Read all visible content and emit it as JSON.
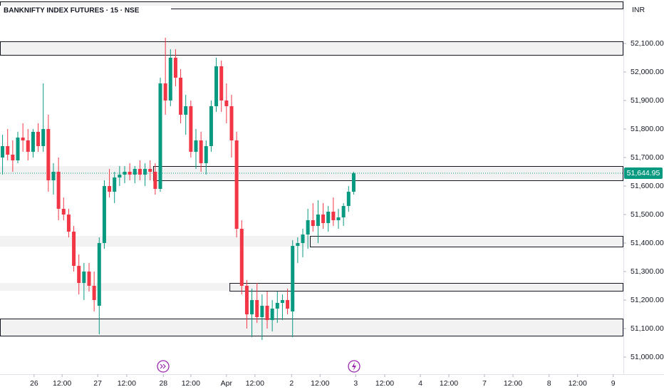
{
  "chart_data": {
    "type": "candlestick",
    "title": "BANKNIFTY INDEX FUTURES · 15 · NSE",
    "currency": "INR",
    "x": [
      0,
      1,
      2,
      3,
      4,
      5,
      6,
      7,
      8,
      9,
      10,
      11,
      12,
      13,
      14,
      15,
      16,
      17,
      18,
      19,
      20,
      21,
      22,
      23,
      24,
      25,
      26,
      27,
      28,
      29,
      30,
      31,
      32,
      33,
      34,
      35,
      36,
      37,
      38,
      39,
      40,
      41,
      42,
      43,
      44,
      45,
      46,
      47,
      48,
      49,
      50,
      51,
      52,
      53,
      54,
      55,
      56,
      57,
      58,
      59,
      60,
      61,
      62,
      63,
      64,
      65,
      66,
      67,
      68,
      69
    ],
    "open": [
      51700,
      51740,
      51710,
      51690,
      51770,
      51760,
      51720,
      51790,
      51740,
      51800,
      51620,
      51650,
      51520,
      51500,
      51440,
      51320,
      51260,
      51300,
      51250,
      51180,
      51400,
      51600,
      51580,
      51630,
      51640,
      51650,
      51640,
      51660,
      51640,
      51660,
      51650,
      51590,
      51960,
      51900,
      52050,
      51980,
      51850,
      51880,
      51720,
      51760,
      51680,
      51740,
      51880,
      52020,
      51900,
      51880,
      51760,
      51450,
      51250,
      51150,
      51200,
      51140,
      51180,
      51130,
      51170,
      51190,
      51200,
      51160,
      51390,
      51400,
      51430,
      51480,
      51460,
      51500,
      51470,
      51510,
      51480,
      51490,
      51530,
      51580
    ],
    "high": [
      51780,
      51800,
      51760,
      51790,
      51820,
      51800,
      51800,
      51820,
      51960,
      51850,
      51680,
      51700,
      51560,
      51520,
      51460,
      51360,
      51330,
      51330,
      51300,
      51420,
      51620,
      51660,
      51650,
      51670,
      51670,
      51680,
      51670,
      51690,
      51680,
      51690,
      51680,
      51980,
      52120,
      52080,
      52080,
      52010,
      51920,
      51900,
      51800,
      51790,
      51760,
      51900,
      52050,
      52040,
      51960,
      51920,
      51790,
      51480,
      51270,
      51240,
      51260,
      51220,
      51230,
      51200,
      51230,
      51220,
      51240,
      51410,
      51420,
      51450,
      51520,
      51540,
      51550,
      51540,
      51530,
      51560,
      51520,
      51540,
      51600,
      51650
    ],
    "low": [
      51640,
      51690,
      51650,
      51680,
      51720,
      51690,
      51700,
      51720,
      51720,
      51580,
      51570,
      51480,
      51480,
      51420,
      51300,
      51220,
      51200,
      51230,
      51160,
      51080,
      51380,
      51560,
      51540,
      51600,
      51610,
      51620,
      51610,
      51620,
      51600,
      51620,
      51570,
      51580,
      51850,
      51880,
      51950,
      51820,
      51780,
      51700,
      51660,
      51650,
      51640,
      51720,
      51860,
      51860,
      51820,
      51700,
      51420,
      51220,
      51100,
      51070,
      51120,
      51060,
      51100,
      51090,
      51120,
      51130,
      51150,
      51070,
      51330,
      51350,
      51380,
      51440,
      51400,
      51450,
      51440,
      51460,
      51450,
      51460,
      51510,
      51570
    ],
    "close": [
      51740,
      51710,
      51690,
      51770,
      51760,
      51720,
      51790,
      51740,
      51800,
      51620,
      51650,
      51520,
      51500,
      51440,
      51320,
      51260,
      51300,
      51250,
      51200,
      51400,
      51600,
      51580,
      51630,
      51640,
      51650,
      51640,
      51660,
      51640,
      51660,
      51650,
      51590,
      51960,
      51900,
      52050,
      51980,
      51850,
      51880,
      51720,
      51760,
      51680,
      51740,
      51880,
      52020,
      51900,
      51880,
      51760,
      51450,
      51250,
      51150,
      51200,
      51140,
      51180,
      51130,
      51170,
      51190,
      51200,
      51170,
      51390,
      51400,
      51430,
      51480,
      51460,
      51500,
      51470,
      51510,
      51480,
      51490,
      51530,
      51580,
      51644.95
    ],
    "up_color": "#089981",
    "down_color": "#f23645",
    "xlim": [
      -0.5,
      122
    ],
    "xticks": [
      {
        "value": 6.2,
        "label": "26"
      },
      {
        "value": 11.7,
        "label": "12:00"
      },
      {
        "value": 18.7,
        "label": "27"
      },
      {
        "value": 24.4,
        "label": "12:00"
      },
      {
        "value": 31.6,
        "label": "28"
      },
      {
        "value": 37.0,
        "label": "12:00"
      },
      {
        "value": 44.0,
        "label": "Apr"
      },
      {
        "value": 49.6,
        "label": "12:00"
      },
      {
        "value": 56.8,
        "label": "2"
      },
      {
        "value": 62.4,
        "label": "12:00"
      },
      {
        "value": 69.4,
        "label": "3"
      },
      {
        "value": 75.1,
        "label": "12:00"
      },
      {
        "value": 82.1,
        "label": "4"
      },
      {
        "value": 87.7,
        "label": "12:00"
      },
      {
        "value": 94.7,
        "label": "7"
      },
      {
        "value": 100.3,
        "label": "12:00"
      },
      {
        "value": 107.4,
        "label": "8"
      },
      {
        "value": 113.0,
        "label": "12:00"
      },
      {
        "value": 120.0,
        "label": "9"
      }
    ],
    "ylim": [
      50940,
      52252.5
    ],
    "yticks": [
      {
        "value": 51000,
        "label": "51,000.00"
      },
      {
        "value": 51100,
        "label": "51,100.00"
      },
      {
        "value": 51200,
        "label": "51,200.00"
      },
      {
        "value": 51300,
        "label": "51,300.00"
      },
      {
        "value": 51400,
        "label": "51,400.00"
      },
      {
        "value": 51500,
        "label": "51,500.00"
      },
      {
        "value": 51600,
        "label": "51,600.00"
      },
      {
        "value": 51700,
        "label": "51,700.00"
      },
      {
        "value": 51800,
        "label": "51,800.00"
      },
      {
        "value": 51900,
        "label": "51,900.00"
      },
      {
        "value": 52000,
        "label": "52,000.00"
      },
      {
        "value": 52100,
        "label": "52,100.00"
      }
    ],
    "last_price": {
      "value": 51644.95,
      "label": "51,644.95"
    },
    "zones": [
      {
        "top": 52247.5,
        "bottom": 52222.5,
        "start": -0.5
      },
      {
        "top": 52107.5,
        "bottom": 52060,
        "start": -0.5
      },
      {
        "top": 51670,
        "bottom": 51620,
        "start": 29.6
      },
      {
        "top": 51425,
        "bottom": 51387.5,
        "start": 60.4
      },
      {
        "top": 51260,
        "bottom": 51232.5,
        "start": 44.6
      },
      {
        "top": 51135,
        "bottom": 51075,
        "start": -0.5
      }
    ],
    "zone_color": "#f2f2f2",
    "grid": false
  }
}
